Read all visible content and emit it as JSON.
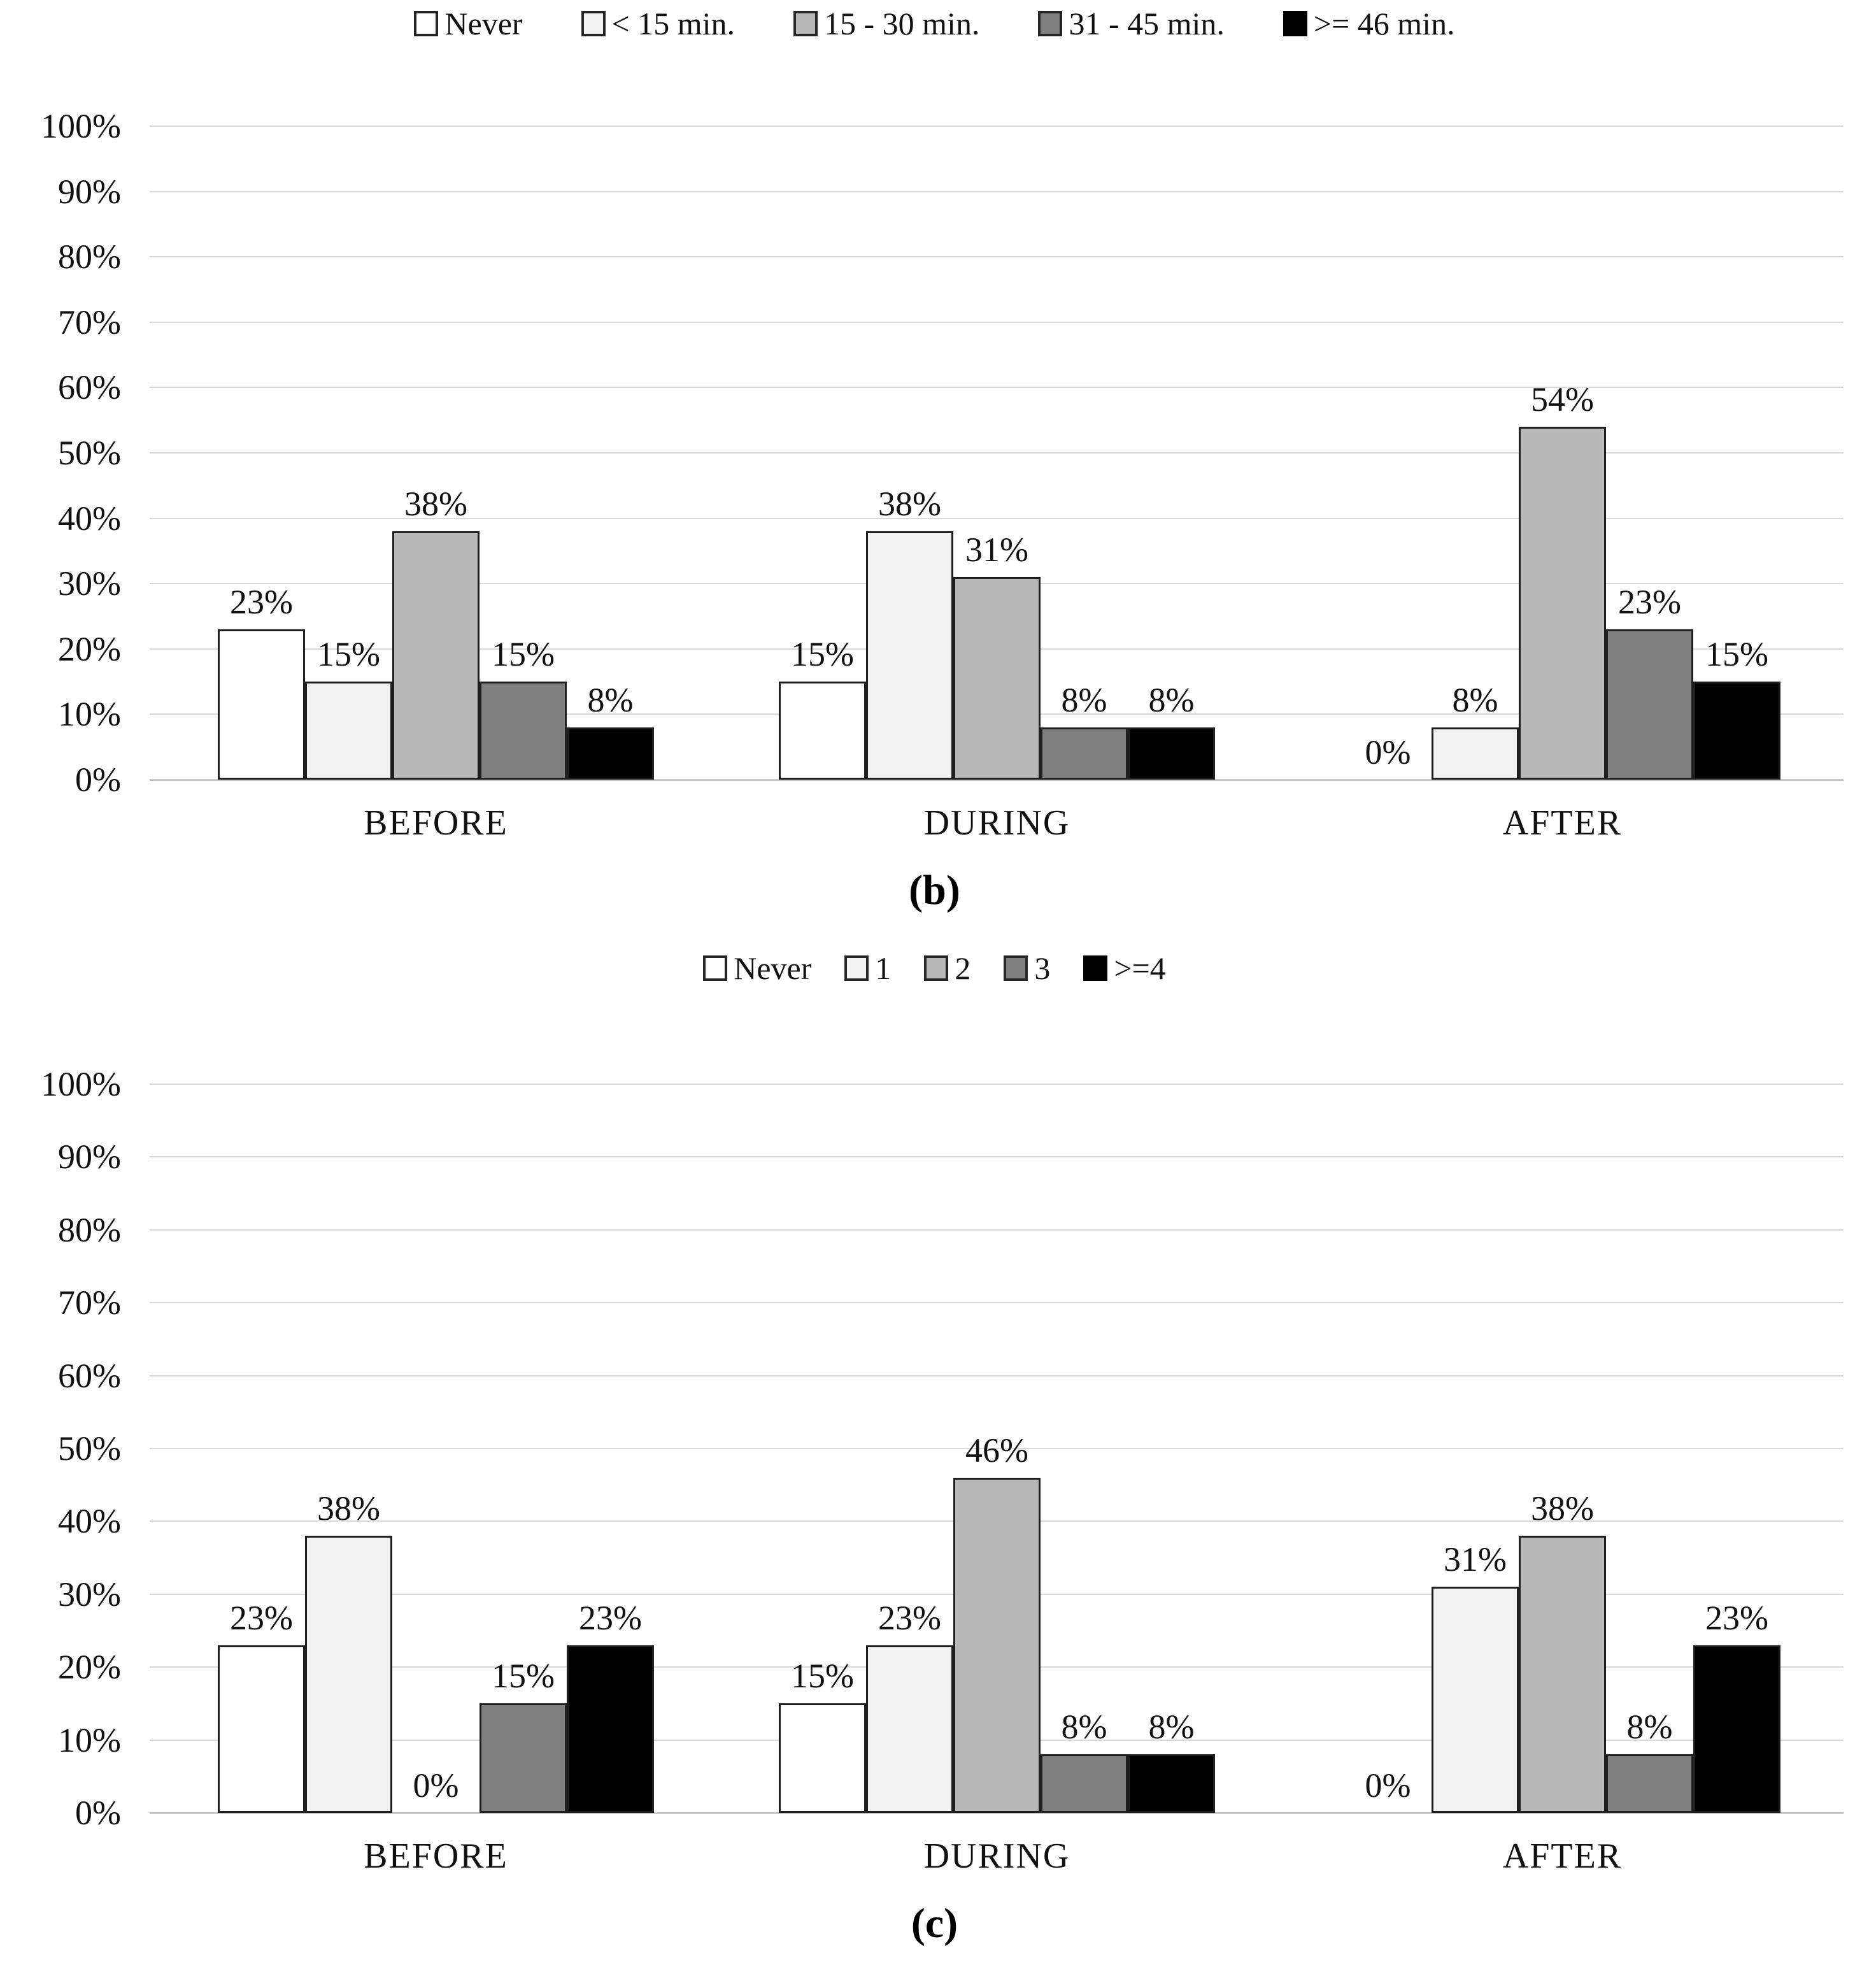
{
  "palette": {
    "series_fills": [
      "#ffffff",
      "#f2f2f2",
      "#b8b8b8",
      "#7f7f7f",
      "#000000"
    ],
    "bar_outline": "#1f1f1f",
    "gridline": "#d9d9d9",
    "axis_line": "#c9c9c9",
    "text": "#111111"
  },
  "chart_data": [
    {
      "type": "bar",
      "caption": "(b)",
      "legend_position": "top",
      "grid": true,
      "ylim": [
        0,
        100
      ],
      "ylabels": [
        "100%",
        "90%",
        "80%",
        "70%",
        "60%",
        "50%",
        "40%",
        "30%",
        "20%",
        "10%",
        "0%"
      ],
      "categories": [
        "BEFORE",
        "DURING",
        "AFTER"
      ],
      "series": [
        {
          "name": "Never",
          "color": "#ffffff",
          "values": [
            23,
            15,
            0
          ]
        },
        {
          "name": "< 15 min.",
          "color": "#f2f2f2",
          "values": [
            15,
            38,
            8
          ]
        },
        {
          "name": "15 - 30 min.",
          "color": "#b8b8b8",
          "values": [
            38,
            31,
            54
          ]
        },
        {
          "name": "31 - 45 min.",
          "color": "#7f7f7f",
          "values": [
            15,
            8,
            23
          ]
        },
        {
          "name": ">= 46 min.",
          "color": "#000000",
          "values": [
            8,
            8,
            15
          ]
        }
      ],
      "data_labels": [
        [
          "23%",
          "15%",
          "38%",
          "15%",
          "8%"
        ],
        [
          "15%",
          "38%",
          "31%",
          "8%",
          "8%"
        ],
        [
          "0%",
          "8%",
          "54%",
          "23%",
          "15%"
        ]
      ]
    },
    {
      "type": "bar",
      "caption": "(c)",
      "legend_position": "top",
      "grid": true,
      "ylim": [
        0,
        100
      ],
      "ylabels": [
        "100%",
        "90%",
        "80%",
        "70%",
        "60%",
        "50%",
        "40%",
        "30%",
        "20%",
        "10%",
        "0%"
      ],
      "categories": [
        "BEFORE",
        "DURING",
        "AFTER"
      ],
      "series": [
        {
          "name": "Never",
          "color": "#ffffff",
          "values": [
            23,
            15,
            0
          ]
        },
        {
          "name": "1",
          "color": "#f2f2f2",
          "values": [
            38,
            23,
            31
          ]
        },
        {
          "name": "2",
          "color": "#b8b8b8",
          "values": [
            0,
            46,
            38
          ]
        },
        {
          "name": "3",
          "color": "#7f7f7f",
          "values": [
            15,
            8,
            8
          ]
        },
        {
          "name": ">=4",
          "color": "#000000",
          "values": [
            23,
            8,
            23
          ]
        }
      ],
      "data_labels": [
        [
          "23%",
          "38%",
          "0%",
          "15%",
          "23%"
        ],
        [
          "15%",
          "23%",
          "46%",
          "8%",
          "8%"
        ],
        [
          "0%",
          "31%",
          "38%",
          "8%",
          "23%"
        ]
      ]
    }
  ]
}
